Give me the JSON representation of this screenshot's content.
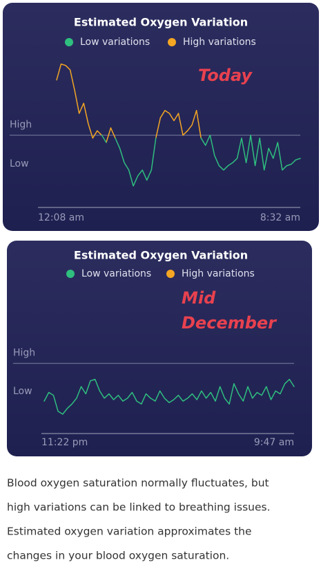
{
  "chart_data": [
    {
      "type": "line",
      "title": "Estimated Oxygen Variation",
      "annotations": [
        "Today"
      ],
      "low_label": "Low",
      "ylim": [
        0,
        100
      ],
      "yticks": [
        {
          "value": 45,
          "label": "High"
        }
      ],
      "categories": [
        "12:08 am",
        null,
        null,
        null,
        null,
        null,
        null,
        null,
        null,
        null,
        null,
        null,
        null,
        null,
        null,
        null,
        null,
        null,
        null,
        null,
        null,
        null,
        null,
        null,
        null,
        null,
        null,
        null,
        null,
        null,
        null,
        null,
        null,
        null,
        null,
        null,
        null,
        null,
        null,
        null,
        null,
        null,
        null,
        null,
        null,
        null,
        null,
        null,
        null,
        null,
        null,
        null,
        null,
        null,
        "8:32 am"
      ],
      "series": [
        {
          "name": "Low variations",
          "color": "#2fbf7f",
          "values": [
            null,
            null,
            null,
            null,
            null,
            null,
            null,
            null,
            43,
            null,
            45,
            40,
            null,
            43,
            36,
            26,
            21,
            10,
            17,
            21,
            14,
            21,
            43,
            null,
            null,
            null,
            null,
            null,
            45,
            null,
            null,
            null,
            43,
            38,
            45,
            31,
            24,
            21,
            24,
            26,
            29,
            43,
            26,
            45,
            24,
            43,
            21,
            36,
            29,
            40,
            21,
            24,
            25,
            28,
            29
          ]
        },
        {
          "name": "High variations",
          "color": "#f5a623",
          "values": [
            83,
            94,
            93,
            90,
            76,
            60,
            67,
            53,
            null,
            48,
            null,
            null,
            50,
            null,
            null,
            null,
            null,
            null,
            null,
            null,
            null,
            null,
            null,
            57,
            62,
            60,
            55,
            60,
            null,
            48,
            52,
            62,
            null,
            null,
            null,
            null,
            null,
            null,
            null,
            null,
            null,
            null,
            null,
            null,
            null,
            null,
            null,
            null,
            null,
            null,
            null,
            null,
            null,
            null,
            null
          ]
        }
      ]
    },
    {
      "type": "line",
      "title": "Estimated Oxygen Variation",
      "annotations": [
        "Mid",
        "December"
      ],
      "low_label": "Low",
      "ylim": [
        0,
        100
      ],
      "yticks": [
        {
          "value": 45,
          "label": "High"
        }
      ],
      "categories": [
        "11:22 pm",
        null,
        null,
        null,
        null,
        null,
        null,
        null,
        null,
        null,
        null,
        null,
        null,
        null,
        null,
        null,
        null,
        null,
        null,
        null,
        null,
        null,
        null,
        null,
        null,
        null,
        null,
        null,
        null,
        null,
        null,
        null,
        null,
        null,
        null,
        null,
        null,
        null,
        null,
        null,
        null,
        null,
        null,
        null,
        null,
        null,
        null,
        null,
        null,
        null,
        null,
        null,
        null,
        null,
        "9:47 am"
      ],
      "series": [
        {
          "name": "Low variations",
          "color": "#2fbf7f",
          "values": [
            19,
            25,
            23,
            12,
            10,
            14,
            17,
            21,
            29,
            24,
            33,
            34,
            26,
            21,
            24,
            20,
            23,
            19,
            21,
            25,
            19,
            17,
            24,
            21,
            19,
            26,
            21,
            18,
            20,
            23,
            19,
            21,
            24,
            20,
            26,
            21,
            25,
            19,
            29,
            21,
            17,
            31,
            24,
            19,
            29,
            21,
            25,
            23,
            29,
            20,
            26,
            24,
            31,
            34,
            29
          ]
        },
        {
          "name": "High variations",
          "color": "#f5a623",
          "values": [
            null,
            null,
            null,
            null,
            null,
            null,
            null,
            null,
            null,
            null,
            null,
            null,
            null,
            null,
            null,
            null,
            null,
            null,
            null,
            null,
            null,
            null,
            null,
            null,
            null,
            null,
            null,
            null,
            null,
            null,
            null,
            null,
            null,
            null,
            null,
            null,
            null,
            null,
            null,
            null,
            null,
            null,
            null,
            null,
            null,
            null,
            null,
            null,
            null,
            null,
            null,
            null,
            null,
            null,
            null
          ]
        }
      ]
    }
  ],
  "paragraph_lines": [
    "Blood oxygen saturation normally fluctuates, but",
    "high variations can be linked to breathing issues.",
    "Estimated oxygen variation approximates the",
    "changes in your blood oxygen saturation."
  ]
}
